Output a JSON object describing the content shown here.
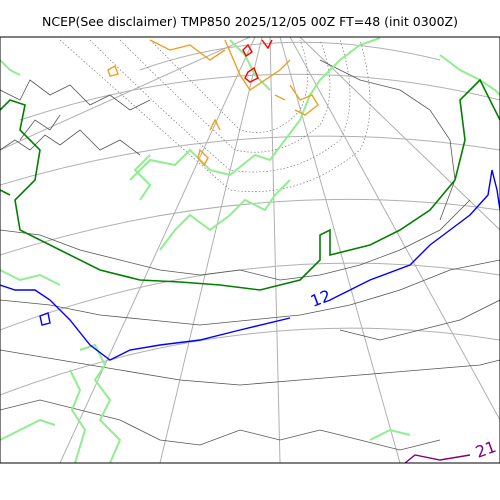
{
  "title": "NCEP(See disclaimer) TMP850 2025/12/05 00Z FT=48 (init 0300Z)",
  "contour_labels": {
    "blue": "12",
    "purple": "21"
  },
  "colors": {
    "coastline": "#555555",
    "graticule": "#b0b0b0",
    "coast_light_green": "#90ee90",
    "contour_dark_green": "#008000",
    "contour_blue": "#0000ff",
    "contour_orange": "#f0a020",
    "contour_red": "#ff0000",
    "contour_purple": "#800080",
    "contour_gray_dotted": "#777777"
  }
}
